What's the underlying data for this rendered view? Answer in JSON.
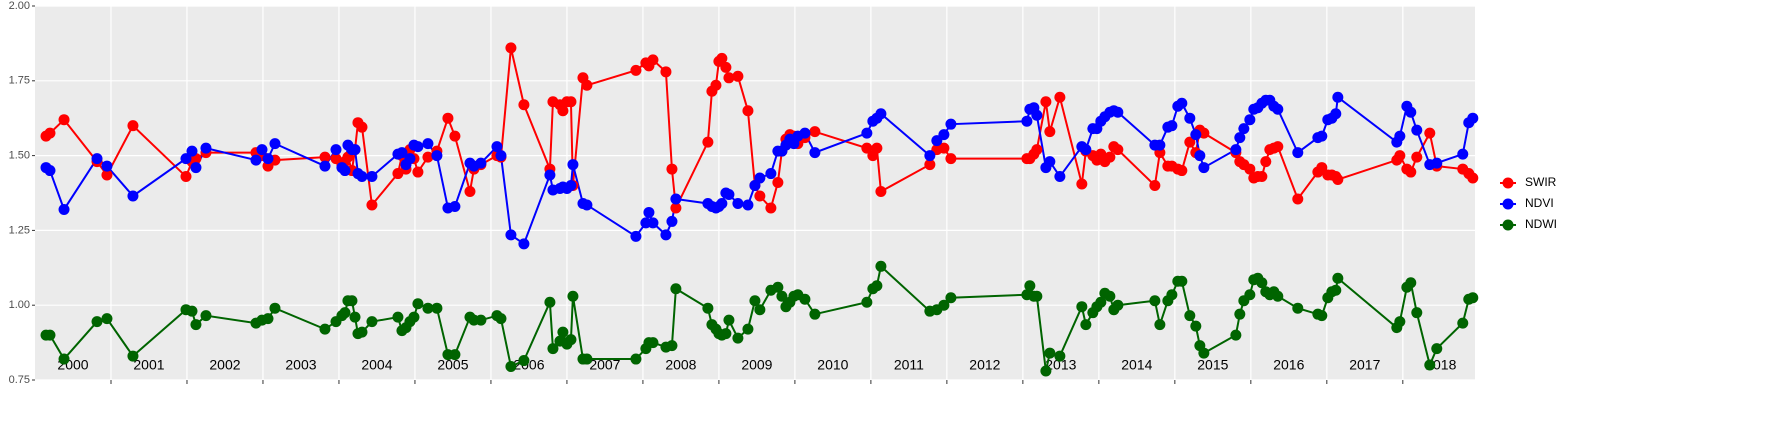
{
  "chart_data": {
    "type": "line",
    "x": [
      2000.145,
      2000.197,
      2000.382,
      2000.816,
      2000.947,
      2001.289,
      2001.987,
      2002.066,
      2002.118,
      2002.25,
      2002.908,
      2002.987,
      2003.066,
      2003.158,
      2003.816,
      2003.961,
      2004.039,
      2004.079,
      2004.118,
      2004.171,
      2004.211,
      2004.25,
      2004.303,
      2004.434,
      2004.776,
      2004.829,
      2004.882,
      2004.934,
      2004.987,
      2005.039,
      2005.171,
      2005.289,
      2005.434,
      2005.526,
      2005.724,
      2005.776,
      2005.868,
      2006.079,
      2006.132,
      2006.263,
      2006.434,
      2006.776,
      2006.816,
      2006.908,
      2006.947,
      2007.0,
      2007.053,
      2007.079,
      2007.211,
      2007.263,
      2007.908,
      2008.039,
      2008.079,
      2008.132,
      2008.303,
      2008.382,
      2008.434,
      2008.855,
      2008.908,
      2008.961,
      2009.0,
      2009.039,
      2009.092,
      2009.132,
      2009.25,
      2009.382,
      2009.474,
      2009.539,
      2009.684,
      2009.776,
      2009.829,
      2009.882,
      2009.934,
      2009.987,
      2010.039,
      2010.132,
      2010.263,
      2010.947,
      2011.026,
      2011.079,
      2011.132,
      2011.776,
      2011.868,
      2011.961,
      2012.053,
      2013.053,
      2013.092,
      2013.145,
      2013.184,
      2013.303,
      2013.355,
      2013.487,
      2013.776,
      2013.829,
      2013.921,
      2013.974,
      2014.026,
      2014.079,
      2014.145,
      2014.197,
      2014.25,
      2014.737,
      2014.803,
      2014.908,
      2014.961,
      2015.039,
      2015.092,
      2015.197,
      2015.276,
      2015.329,
      2015.382,
      2015.803,
      2015.855,
      2015.908,
      2015.987,
      2016.039,
      2016.092,
      2016.145,
      2016.197,
      2016.25,
      2016.303,
      2016.355,
      2016.618,
      2016.882,
      2016.934,
      2017.013,
      2017.066,
      2017.118,
      2017.145,
      2017.921,
      2017.961,
      2018.053,
      2018.105,
      2018.184,
      2018.355,
      2018.447,
      2018.789,
      2018.868,
      2018.921
    ],
    "series": [
      {
        "name": "SWIR",
        "color": "#ff0000",
        "values": [
          1.565,
          1.575,
          1.62,
          1.48,
          1.435,
          1.6,
          1.43,
          1.48,
          1.49,
          1.51,
          1.51,
          1.5,
          1.465,
          1.485,
          1.495,
          1.49,
          1.47,
          1.48,
          1.495,
          1.45,
          1.52,
          1.61,
          1.595,
          1.335,
          1.44,
          1.5,
          1.455,
          1.52,
          1.49,
          1.445,
          1.495,
          1.515,
          1.625,
          1.565,
          1.38,
          1.455,
          1.47,
          1.5,
          1.495,
          1.86,
          1.67,
          1.455,
          1.68,
          1.67,
          1.65,
          1.68,
          1.68,
          1.4,
          1.76,
          1.735,
          1.785,
          1.81,
          1.8,
          1.82,
          1.78,
          1.455,
          1.325,
          1.545,
          1.715,
          1.735,
          1.815,
          1.825,
          1.795,
          1.76,
          1.765,
          1.65,
          1.4,
          1.365,
          1.325,
          1.41,
          1.515,
          1.555,
          1.57,
          1.565,
          1.54,
          1.56,
          1.58,
          1.525,
          1.5,
          1.525,
          1.38,
          1.47,
          1.52,
          1.525,
          1.49,
          1.49,
          1.49,
          1.505,
          1.52,
          1.68,
          1.58,
          1.695,
          1.405,
          1.515,
          1.5,
          1.485,
          1.505,
          1.48,
          1.495,
          1.53,
          1.52,
          1.4,
          1.51,
          1.465,
          1.465,
          1.455,
          1.45,
          1.545,
          1.51,
          1.585,
          1.575,
          1.51,
          1.48,
          1.47,
          1.455,
          1.425,
          1.43,
          1.43,
          1.48,
          1.52,
          1.525,
          1.53,
          1.355,
          1.445,
          1.46,
          1.435,
          1.435,
          1.43,
          1.42,
          1.485,
          1.5,
          1.455,
          1.445,
          1.495,
          1.575,
          1.465,
          1.455,
          1.44,
          1.425
        ]
      },
      {
        "name": "NDVI",
        "color": "#0000ff",
        "values": [
          1.46,
          1.45,
          1.32,
          1.49,
          1.465,
          1.365,
          1.49,
          1.515,
          1.46,
          1.525,
          1.485,
          1.52,
          1.49,
          1.54,
          1.465,
          1.52,
          1.46,
          1.45,
          1.535,
          1.52,
          1.52,
          1.44,
          1.43,
          1.43,
          1.505,
          1.51,
          1.47,
          1.49,
          1.535,
          1.53,
          1.54,
          1.5,
          1.325,
          1.33,
          1.475,
          1.465,
          1.475,
          1.53,
          1.5,
          1.235,
          1.205,
          1.435,
          1.385,
          1.39,
          1.395,
          1.39,
          1.4,
          1.47,
          1.34,
          1.335,
          1.23,
          1.275,
          1.31,
          1.275,
          1.235,
          1.28,
          1.355,
          1.34,
          1.33,
          1.325,
          1.33,
          1.34,
          1.375,
          1.37,
          1.34,
          1.335,
          1.4,
          1.425,
          1.44,
          1.515,
          1.515,
          1.535,
          1.555,
          1.54,
          1.565,
          1.575,
          1.51,
          1.575,
          1.615,
          1.625,
          1.64,
          1.5,
          1.55,
          1.57,
          1.605,
          1.615,
          1.655,
          1.66,
          1.635,
          1.46,
          1.48,
          1.43,
          1.53,
          1.52,
          1.59,
          1.59,
          1.615,
          1.63,
          1.645,
          1.65,
          1.645,
          1.535,
          1.535,
          1.595,
          1.6,
          1.665,
          1.675,
          1.625,
          1.57,
          1.5,
          1.46,
          1.52,
          1.56,
          1.59,
          1.62,
          1.655,
          1.66,
          1.675,
          1.685,
          1.685,
          1.665,
          1.655,
          1.51,
          1.56,
          1.565,
          1.62,
          1.625,
          1.64,
          1.695,
          1.545,
          1.565,
          1.665,
          1.645,
          1.585,
          1.47,
          1.475,
          1.505,
          1.61,
          1.625
        ]
      },
      {
        "name": "NDWI",
        "color": "#006400",
        "values": [
          0.9,
          0.9,
          0.82,
          0.945,
          0.955,
          0.83,
          0.985,
          0.98,
          0.935,
          0.965,
          0.94,
          0.95,
          0.955,
          0.99,
          0.92,
          0.945,
          0.965,
          0.975,
          1.015,
          1.015,
          0.96,
          0.905,
          0.91,
          0.945,
          0.96,
          0.915,
          0.925,
          0.945,
          0.96,
          1.005,
          0.99,
          0.99,
          0.835,
          0.835,
          0.96,
          0.95,
          0.95,
          0.965,
          0.955,
          0.795,
          0.815,
          1.01,
          0.855,
          0.88,
          0.91,
          0.87,
          0.885,
          1.03,
          0.82,
          0.82,
          0.82,
          0.855,
          0.875,
          0.875,
          0.86,
          0.865,
          1.055,
          0.99,
          0.935,
          0.92,
          0.905,
          0.9,
          0.905,
          0.95,
          0.89,
          0.92,
          1.015,
          0.985,
          1.05,
          1.06,
          1.03,
          0.995,
          1.01,
          1.03,
          1.035,
          1.02,
          0.97,
          1.01,
          1.055,
          1.065,
          1.13,
          0.98,
          0.985,
          1.0,
          1.025,
          1.035,
          1.065,
          1.03,
          1.03,
          0.78,
          0.84,
          0.83,
          0.995,
          0.935,
          0.975,
          0.995,
          1.01,
          1.04,
          1.03,
          0.985,
          1.0,
          1.015,
          0.935,
          1.015,
          1.035,
          1.08,
          1.08,
          0.965,
          0.93,
          0.865,
          0.84,
          0.9,
          0.97,
          1.015,
          1.035,
          1.085,
          1.09,
          1.075,
          1.045,
          1.035,
          1.045,
          1.03,
          0.99,
          0.97,
          0.965,
          1.025,
          1.045,
          1.05,
          1.09,
          0.925,
          0.945,
          1.06,
          1.075,
          0.975,
          0.8,
          0.855,
          0.94,
          1.02,
          1.025
        ]
      }
    ],
    "xlim": [
      2000,
      2018.95
    ],
    "xticks": [
      {
        "value": 2000.5,
        "label": "2000"
      },
      {
        "value": 2001.5,
        "label": "2001"
      },
      {
        "value": 2002.5,
        "label": "2002"
      },
      {
        "value": 2003.5,
        "label": "2003"
      },
      {
        "value": 2004.5,
        "label": "2004"
      },
      {
        "value": 2005.5,
        "label": "2005"
      },
      {
        "value": 2006.5,
        "label": "2006"
      },
      {
        "value": 2007.5,
        "label": "2007"
      },
      {
        "value": 2008.5,
        "label": "2008"
      },
      {
        "value": 2009.5,
        "label": "2009"
      },
      {
        "value": 2010.5,
        "label": "2010"
      },
      {
        "value": 2011.5,
        "label": "2011"
      },
      {
        "value": 2012.5,
        "label": "2012"
      },
      {
        "value": 2013.5,
        "label": "2013"
      },
      {
        "value": 2014.5,
        "label": "2014"
      },
      {
        "value": 2015.5,
        "label": "2015"
      },
      {
        "value": 2016.5,
        "label": "2016"
      },
      {
        "value": 2017.5,
        "label": "2017"
      },
      {
        "value": 2018.5,
        "label": "2018"
      }
    ],
    "xgrid": [
      2001,
      2002,
      2003,
      2004,
      2005,
      2006,
      2007,
      2008,
      2009,
      2010,
      2011,
      2012,
      2013,
      2014,
      2015,
      2016,
      2017,
      2018
    ],
    "ylim": [
      0.75,
      2
    ],
    "yticks": [
      0.75,
      {
        "value": 1,
        "label": "1.00"
      },
      1.25,
      {
        "value": 1.5,
        "label": "1.50"
      },
      1.75,
      {
        "value": 2,
        "label": "2.00"
      }
    ],
    "grid": true,
    "legend": "right"
  }
}
